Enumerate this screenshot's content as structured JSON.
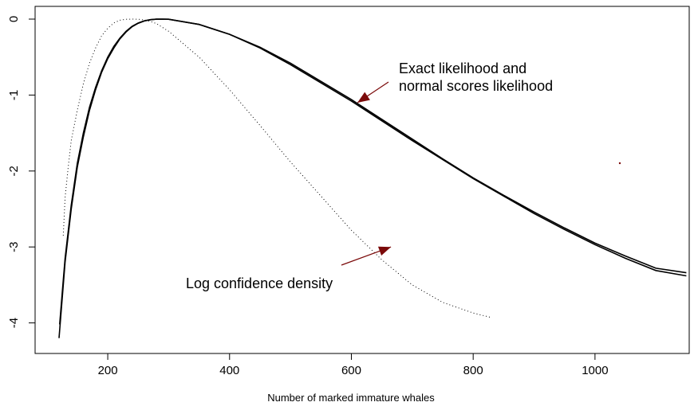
{
  "chart_data": {
    "type": "line",
    "xlabel": "Number of marked immature whales",
    "ylabel": "",
    "xlim": [
      120,
      1150
    ],
    "ylim": [
      -4.25,
      0
    ],
    "x_ticks": [
      200,
      400,
      600,
      800,
      1000
    ],
    "y_ticks": [
      0,
      -1,
      -2,
      -3,
      -4
    ],
    "x_tick_labels": [
      "200",
      "400",
      "600",
      "800",
      "1000"
    ],
    "y_tick_labels": [
      "0",
      "-1",
      "-2",
      "-3",
      "-4"
    ],
    "grid": false,
    "series": [
      {
        "style": "solid",
        "points": [
          [
            120,
            -4.2
          ],
          [
            125,
            -3.7
          ],
          [
            130,
            -3.2
          ],
          [
            140,
            -2.5
          ],
          [
            150,
            -1.95
          ],
          [
            160,
            -1.55
          ],
          [
            170,
            -1.2
          ],
          [
            180,
            -0.93
          ],
          [
            190,
            -0.7
          ],
          [
            200,
            -0.52
          ],
          [
            210,
            -0.38
          ],
          [
            220,
            -0.26
          ],
          [
            230,
            -0.17
          ],
          [
            240,
            -0.1
          ],
          [
            250,
            -0.055
          ],
          [
            260,
            -0.025
          ],
          [
            270,
            -0.008
          ],
          [
            280,
            -0.001
          ],
          [
            290,
            0
          ],
          [
            300,
            -0.002
          ],
          [
            350,
            -0.07
          ],
          [
            400,
            -0.2
          ],
          [
            450,
            -0.38
          ],
          [
            500,
            -0.6
          ],
          [
            550,
            -0.84
          ],
          [
            600,
            -1.08
          ],
          [
            650,
            -1.34
          ],
          [
            700,
            -1.6
          ],
          [
            750,
            -1.85
          ],
          [
            800,
            -2.1
          ],
          [
            850,
            -2.33
          ],
          [
            900,
            -2.56
          ],
          [
            950,
            -2.77
          ],
          [
            1000,
            -2.97
          ],
          [
            1050,
            -3.15
          ],
          [
            1100,
            -3.31
          ],
          [
            1150,
            -3.38
          ]
        ]
      },
      {
        "style": "solid",
        "points": [
          [
            121,
            -4.02
          ],
          [
            125,
            -3.63
          ],
          [
            130,
            -3.15
          ],
          [
            140,
            -2.45
          ],
          [
            150,
            -1.9
          ],
          [
            160,
            -1.5
          ],
          [
            170,
            -1.16
          ],
          [
            180,
            -0.9
          ],
          [
            190,
            -0.68
          ],
          [
            200,
            -0.5
          ],
          [
            210,
            -0.36
          ],
          [
            220,
            -0.25
          ],
          [
            230,
            -0.16
          ],
          [
            240,
            -0.095
          ],
          [
            250,
            -0.05
          ],
          [
            260,
            -0.022
          ],
          [
            270,
            -0.007
          ],
          [
            280,
            -0.001
          ],
          [
            290,
            0
          ],
          [
            300,
            -0.002
          ],
          [
            350,
            -0.07
          ],
          [
            400,
            -0.2
          ],
          [
            450,
            -0.37
          ],
          [
            500,
            -0.58
          ],
          [
            550,
            -0.82
          ],
          [
            600,
            -1.06
          ],
          [
            650,
            -1.32
          ],
          [
            700,
            -1.58
          ],
          [
            750,
            -1.84
          ],
          [
            800,
            -2.09
          ],
          [
            850,
            -2.32
          ],
          [
            900,
            -2.54
          ],
          [
            950,
            -2.75
          ],
          [
            1000,
            -2.95
          ],
          [
            1050,
            -3.12
          ],
          [
            1100,
            -3.28
          ],
          [
            1150,
            -3.34
          ]
        ]
      },
      {
        "style": "dotted",
        "points": [
          [
            127,
            -2.85
          ],
          [
            130,
            -2.35
          ],
          [
            135,
            -1.95
          ],
          [
            140,
            -1.6
          ],
          [
            150,
            -1.2
          ],
          [
            160,
            -0.85
          ],
          [
            170,
            -0.58
          ],
          [
            180,
            -0.38
          ],
          [
            190,
            -0.22
          ],
          [
            200,
            -0.12
          ],
          [
            210,
            -0.05
          ],
          [
            220,
            -0.015
          ],
          [
            230,
            -0.002
          ],
          [
            240,
            0
          ],
          [
            250,
            -0.002
          ],
          [
            260,
            -0.01
          ],
          [
            270,
            -0.03
          ],
          [
            280,
            -0.06
          ],
          [
            300,
            -0.16
          ],
          [
            350,
            -0.5
          ],
          [
            400,
            -0.93
          ],
          [
            450,
            -1.4
          ],
          [
            500,
            -1.88
          ],
          [
            550,
            -2.33
          ],
          [
            600,
            -2.78
          ],
          [
            650,
            -3.17
          ],
          [
            700,
            -3.5
          ],
          [
            750,
            -3.73
          ],
          [
            800,
            -3.87
          ],
          [
            830,
            -3.93
          ]
        ]
      }
    ],
    "annotations": [
      {
        "lines": [
          "Exact likelihood and",
          "normal scores likelihood"
        ],
        "arrow_to": [
          610,
          -1.1
        ]
      },
      {
        "lines": [
          "Log confidence density"
        ],
        "arrow_to": [
          665,
          -3.0
        ]
      }
    ],
    "colors": {
      "curve": "#000000",
      "arrow": "#7b0a0a"
    }
  }
}
